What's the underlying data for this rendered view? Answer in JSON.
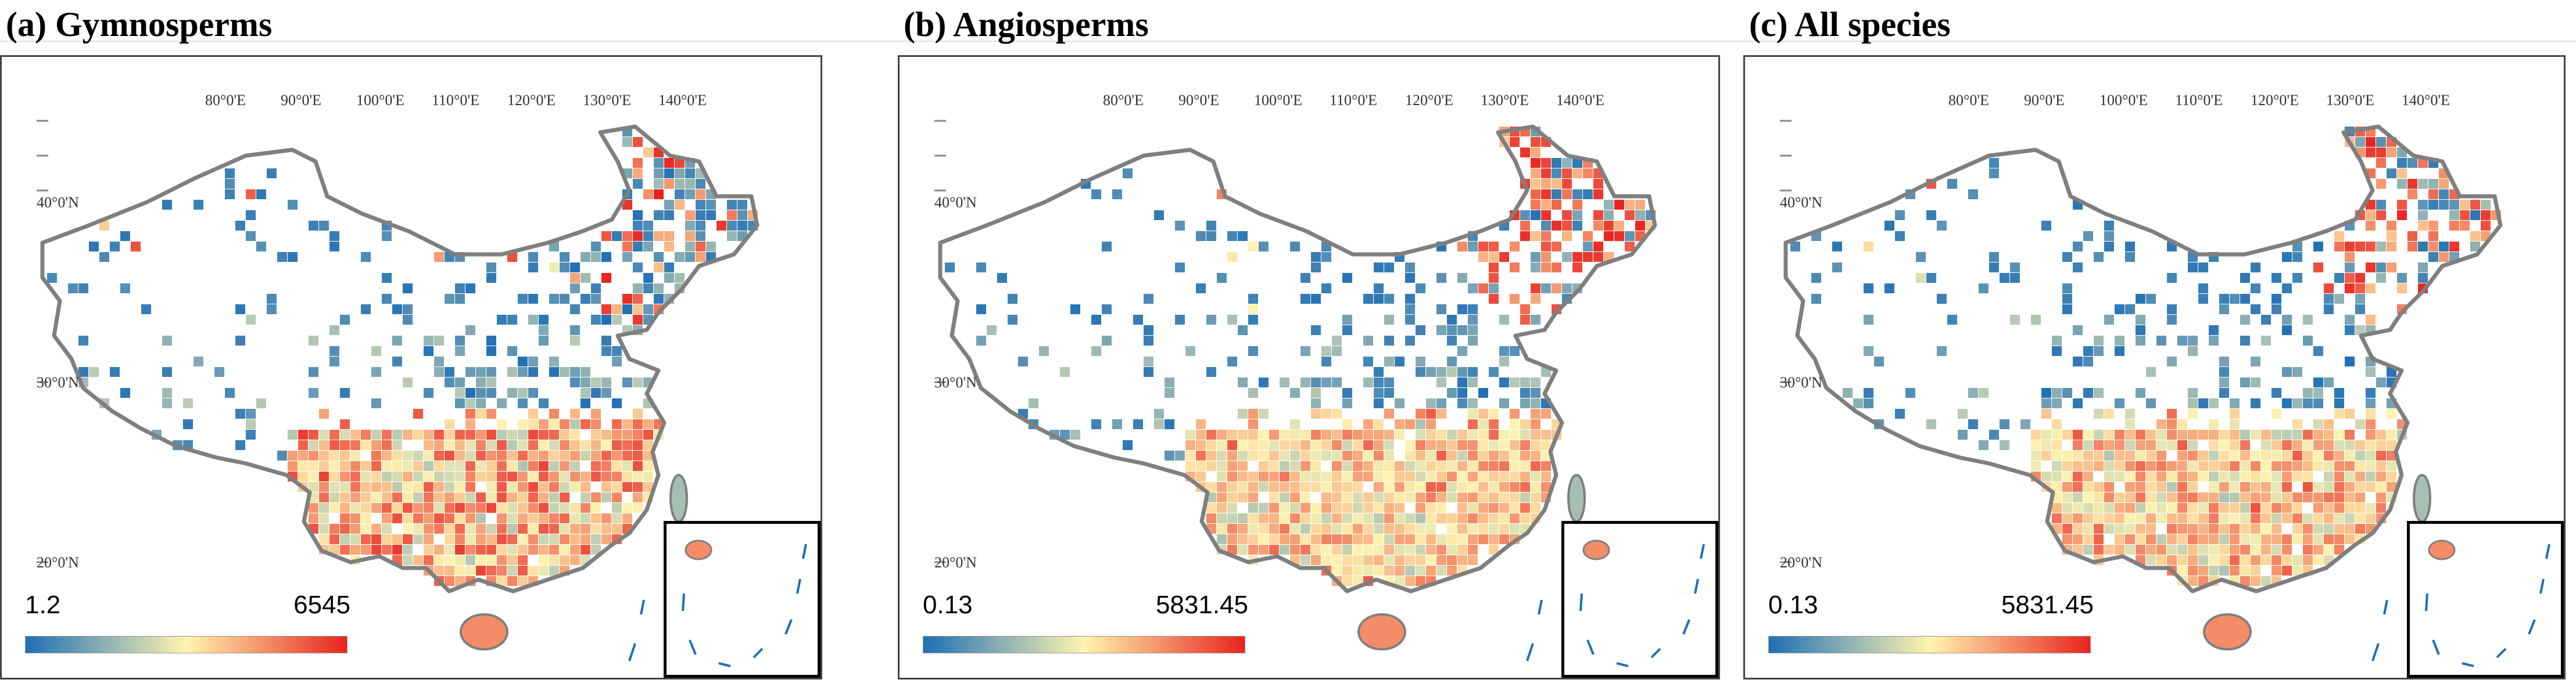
{
  "figure": {
    "colors": {
      "low": "#1f6fb6",
      "mid": "#fff4b0",
      "high": "#e8231f",
      "border": "#7f7f7f",
      "water_line": "#1f6fb6"
    },
    "longitude_ticks": [
      "80°0'E",
      "90°0'E",
      "100°0'E",
      "110°0'E",
      "120°0'E",
      "130°0'E",
      "140°0'E"
    ],
    "latitude_ticks": [
      "40°0'N",
      "30°0'N",
      "20°0'N"
    ]
  },
  "panels": [
    {
      "id": "a",
      "title": "(a) Gymnosperms",
      "legend_min": "1.2",
      "legend_max": "6545",
      "south_bias": 0.85,
      "north_east_bias": 0.25
    },
    {
      "id": "b",
      "title": "(b) Angiosperms",
      "legend_min": "0.13",
      "legend_max": "5831.45",
      "south_bias": 0.6,
      "north_east_bias": 0.75
    },
    {
      "id": "c",
      "title": "(c) All species",
      "legend_min": "0.13",
      "legend_max": "5831.45",
      "south_bias": 0.65,
      "north_east_bias": 0.7
    }
  ]
}
